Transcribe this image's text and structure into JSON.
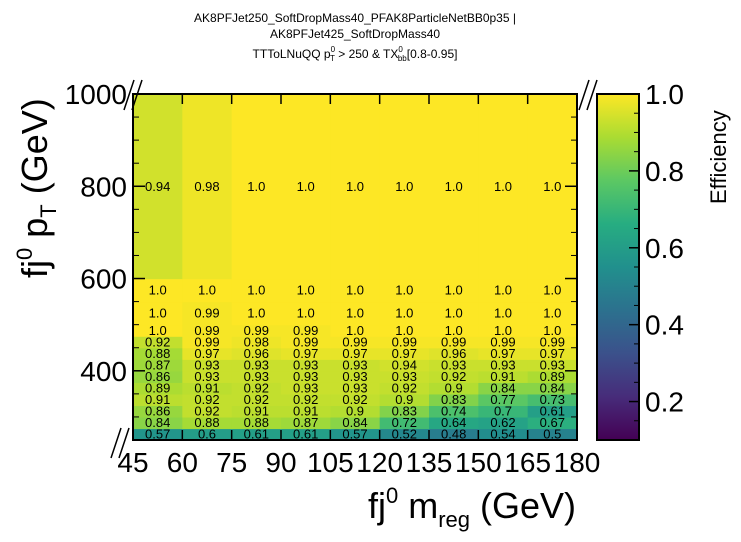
{
  "chart_data": {
    "type": "heatmap",
    "title_lines": [
      "AK8PFJet250_SoftDropMass40_PFAK8ParticleNetBB0p35 |",
      "AK8PFJet425_SoftDropMass40",
      "TTToLNuQQ p",
      "T",
      "0",
      " > 250 & TX",
      "bb",
      "0",
      "[0.8-0.95]"
    ],
    "xlabel": {
      "main": "fj",
      "sup": "0",
      "mid": " m",
      "sub": "reg",
      "tail": " (GeV)"
    },
    "ylabel": {
      "main": "fj",
      "sup": "0",
      "mid": " p",
      "sub": "T",
      "tail": " (GeV)"
    },
    "colorbar_label": "Efficiency",
    "x_edges": [
      45,
      60,
      75,
      90,
      105,
      120,
      135,
      150,
      165,
      180
    ],
    "y_edges": [
      250,
      275,
      300,
      325,
      350,
      375,
      400,
      425,
      450,
      475,
      500,
      550,
      600,
      1000
    ],
    "x_tick_labels": [
      "45",
      "60",
      "75",
      "90",
      "105",
      "120",
      "135",
      "150",
      "165",
      "180"
    ],
    "y_ticks": [
      400,
      600,
      800,
      1000
    ],
    "y_tick_labels": [
      "400",
      "600",
      "800",
      "1000"
    ],
    "xlim": [
      45,
      180
    ],
    "ylim": [
      250,
      1000
    ],
    "zlim": [
      0.1,
      1.0
    ],
    "colorbar_ticks": [
      0.2,
      0.4,
      0.6,
      0.8,
      1.0
    ],
    "colorbar_tick_labels": [
      "0.2",
      "0.4",
      "0.6",
      "0.8",
      "1.0"
    ],
    "colormap": "viridis",
    "values": [
      [
        0.57,
        0.6,
        0.61,
        0.61,
        0.57,
        0.52,
        0.48,
        0.54,
        0.5
      ],
      [
        0.84,
        0.88,
        0.88,
        0.87,
        0.84,
        0.72,
        0.64,
        0.62,
        0.67
      ],
      [
        0.86,
        0.92,
        0.91,
        0.91,
        0.9,
        0.83,
        0.74,
        0.7,
        0.61
      ],
      [
        0.91,
        0.92,
        0.92,
        0.92,
        0.92,
        0.9,
        0.83,
        0.77,
        0.73
      ],
      [
        0.89,
        0.91,
        0.92,
        0.93,
        0.93,
        0.92,
        0.9,
        0.84,
        0.84
      ],
      [
        0.86,
        0.93,
        0.93,
        0.93,
        0.93,
        0.93,
        0.92,
        0.91,
        0.89
      ],
      [
        0.87,
        0.93,
        0.93,
        0.93,
        0.93,
        0.94,
        0.93,
        0.93,
        0.93
      ],
      [
        0.88,
        0.97,
        0.96,
        0.97,
        0.97,
        0.97,
        0.96,
        0.97,
        0.97
      ],
      [
        0.92,
        0.99,
        0.98,
        0.99,
        0.99,
        0.99,
        0.99,
        0.99,
        0.99
      ],
      [
        1.0,
        0.99,
        0.99,
        0.99,
        1.0,
        1.0,
        1.0,
        1.0,
        1.0
      ],
      [
        1.0,
        0.99,
        1.0,
        1.0,
        1.0,
        1.0,
        1.0,
        1.0,
        1.0
      ],
      [
        1.0,
        1.0,
        1.0,
        1.0,
        1.0,
        1.0,
        1.0,
        1.0,
        1.0
      ],
      [
        0.94,
        0.98,
        1.0,
        1.0,
        1.0,
        1.0,
        1.0,
        1.0,
        1.0
      ]
    ],
    "value_labels": [
      [
        "0.57",
        "0.6",
        "0.61",
        "0.61",
        "0.57",
        "0.52",
        "0.48",
        "0.54",
        "0.5"
      ],
      [
        "0.84",
        "0.88",
        "0.88",
        "0.87",
        "0.84",
        "0.72",
        "0.64",
        "0.62",
        "0.67"
      ],
      [
        "0.86",
        "0.92",
        "0.91",
        "0.91",
        "0.9",
        "0.83",
        "0.74",
        "0.7",
        "0.61"
      ],
      [
        "0.91",
        "0.92",
        "0.92",
        "0.92",
        "0.92",
        "0.9",
        "0.83",
        "0.77",
        "0.73"
      ],
      [
        "0.89",
        "0.91",
        "0.92",
        "0.93",
        "0.93",
        "0.92",
        "0.9",
        "0.84",
        "0.84"
      ],
      [
        "0.86",
        "0.93",
        "0.93",
        "0.93",
        "0.93",
        "0.93",
        "0.92",
        "0.91",
        "0.89"
      ],
      [
        "0.87",
        "0.93",
        "0.93",
        "0.93",
        "0.93",
        "0.94",
        "0.93",
        "0.93",
        "0.93"
      ],
      [
        "0.88",
        "0.97",
        "0.96",
        "0.97",
        "0.97",
        "0.97",
        "0.96",
        "0.97",
        "0.97"
      ],
      [
        "0.92",
        "0.99",
        "0.98",
        "0.99",
        "0.99",
        "0.99",
        "0.99",
        "0.99",
        "0.99"
      ],
      [
        "1.0",
        "0.99",
        "0.99",
        "0.99",
        "1.0",
        "1.0",
        "1.0",
        "1.0",
        "1.0"
      ],
      [
        "1.0",
        "0.99",
        "1.0",
        "1.0",
        "1.0",
        "1.0",
        "1.0",
        "1.0",
        "1.0"
      ],
      [
        "1.0",
        "1.0",
        "1.0",
        "1.0",
        "1.0",
        "1.0",
        "1.0",
        "1.0",
        "1.0"
      ],
      [
        "0.94",
        "0.98",
        "1.0",
        "1.0",
        "1.0",
        "1.0",
        "1.0",
        "1.0",
        "1.0"
      ]
    ]
  }
}
